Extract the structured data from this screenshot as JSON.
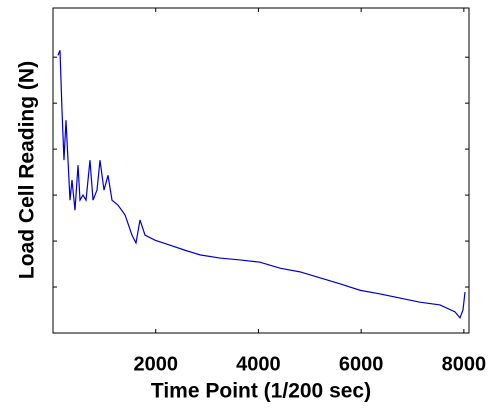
{
  "chart_data": {
    "type": "line",
    "xlabel": "Time Point (1/200 sec)",
    "ylabel": "Load Cell Reading (N)",
    "xlim": [
      0,
      8100
    ],
    "xticks": [
      2000,
      4000,
      6000,
      8000
    ],
    "ylim": [
      0,
      7.07
    ],
    "yticks": [
      1,
      2,
      3,
      4,
      5,
      6
    ],
    "series": [
      {
        "color": "#0000cc",
        "x": [
          97,
          136,
          175,
          214,
          253,
          331,
          370,
          428,
          487,
          526,
          584,
          643,
          720,
          779,
          857,
          915,
          993,
          1071,
          1149,
          1266,
          1402,
          1538,
          1616,
          1694,
          1791,
          1986,
          2278,
          2570,
          2862,
          3252,
          3641,
          4030,
          4420,
          4809,
          5198,
          5588,
          5977,
          6367,
          6756,
          7145,
          7535,
          7827,
          7924,
          7983,
          8022
        ],
        "values": [
          6.04,
          6.15,
          4.85,
          3.76,
          4.63,
          2.89,
          3.33,
          2.67,
          3.65,
          2.89,
          3.0,
          2.89,
          3.76,
          2.89,
          3.11,
          3.76,
          3.11,
          3.43,
          2.89,
          2.78,
          2.57,
          2.13,
          1.96,
          2.46,
          2.13,
          2.02,
          1.91,
          1.8,
          1.7,
          1.63,
          1.59,
          1.54,
          1.41,
          1.33,
          1.2,
          1.07,
          0.93,
          0.85,
          0.76,
          0.67,
          0.61,
          0.46,
          0.33,
          0.5,
          0.89
        ]
      }
    ]
  }
}
